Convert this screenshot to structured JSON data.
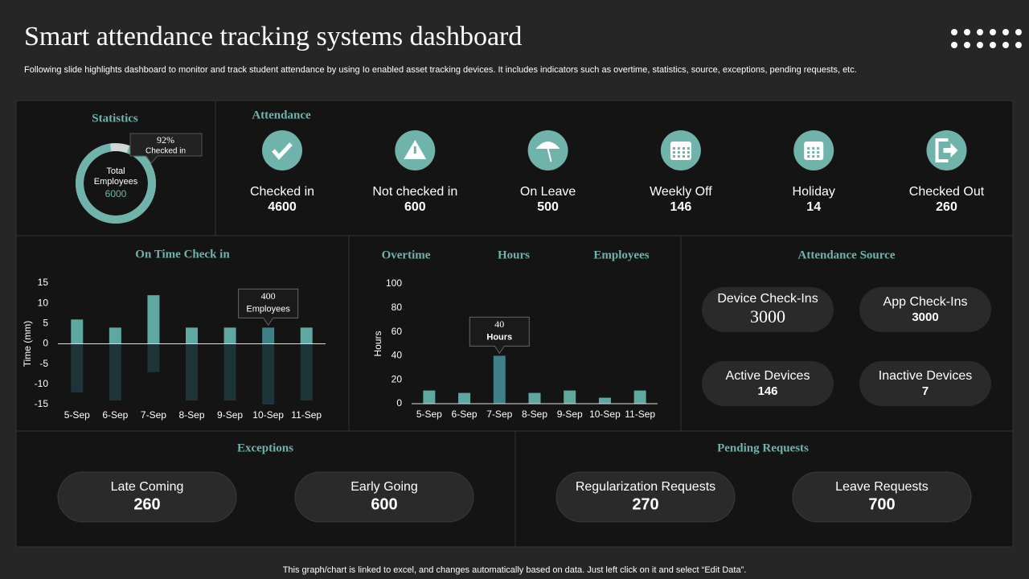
{
  "header": {
    "title": "Smart attendance tracking systems dashboard",
    "subtitle": "Following slide highlights dashboard to monitor and track student attendance by using Io enabled asset tracking devices. It includes indicators such as overtime, statistics, source, exceptions, pending requests, etc."
  },
  "statistics": {
    "title": "Statistics",
    "checked_in_percent": 92,
    "checked_in_percent_label": "92%",
    "callout": "Checked in",
    "center_label": "Total Employees",
    "total": 6000
  },
  "attendance": {
    "title": "Attendance",
    "items": [
      {
        "label": "Checked in",
        "value": 4600
      },
      {
        "label": "Not checked in",
        "value": 600
      },
      {
        "label": "On Leave",
        "value": 500
      },
      {
        "label": "Weekly Off",
        "value": 146
      },
      {
        "label": "Holiday",
        "value": 14
      },
      {
        "label": "Checked Out",
        "value": 260
      }
    ]
  },
  "on_time_chart": {
    "type": "bar",
    "title": "On Time Check in",
    "y_label": "Time (mm)",
    "categories": [
      "5-Sep",
      "6-Sep",
      "7-Sep",
      "8-Sep",
      "9-Sep",
      "10-Sep",
      "11-Sep"
    ],
    "series": [
      {
        "color": "#5fa8a0",
        "values": [
          6,
          4,
          12,
          4,
          4,
          4,
          4
        ]
      },
      {
        "color": "#1d3538",
        "values": [
          -12,
          -14,
          -7,
          -14,
          -14,
          -15,
          -14
        ]
      }
    ],
    "highlight": 5,
    "highlight_color": "#3f7f86",
    "ylim": [
      -15,
      15
    ],
    "yticks": [
      -15,
      -10,
      -5,
      0,
      5,
      10,
      15
    ],
    "callout": {
      "value": 400,
      "label": "Employees"
    }
  },
  "overtime_chart": {
    "type": "bar",
    "headers": [
      "Overtime",
      "Hours",
      "Employees"
    ],
    "y_label": "Hours",
    "categories": [
      "5-Sep",
      "6-Sep",
      "7-Sep",
      "8-Sep",
      "9-Sep",
      "10-Sep",
      "11-Sep"
    ],
    "values": [
      11,
      9,
      40,
      9,
      11,
      5,
      11
    ],
    "color": "#5fa8a0",
    "highlight": 2,
    "highlight_color": "#3f7f86",
    "ylim": [
      0,
      100
    ],
    "yticks": [
      0,
      20,
      40,
      60,
      80,
      100
    ],
    "callout": {
      "value": 40,
      "label": "Hours"
    }
  },
  "attendance_source": {
    "title": "Attendance Source",
    "items": [
      {
        "label": "Device Check-Ins",
        "value": 3000
      },
      {
        "label": "App Check-Ins",
        "value": 3000
      },
      {
        "label": "Active Devices",
        "value": 146
      },
      {
        "label": "Inactive Devices",
        "value": 7
      }
    ]
  },
  "exceptions": {
    "title": "Exceptions",
    "items": [
      {
        "label": "Late Coming",
        "value": 260
      },
      {
        "label": "Early Going",
        "value": 600
      }
    ]
  },
  "pending_requests": {
    "title": "Pending Requests",
    "items": [
      {
        "label": "Regularization Requests",
        "value": 270
      },
      {
        "label": "Leave Requests",
        "value": 700
      }
    ]
  },
  "footer": "This graph/chart is linked to excel,  and changes automatically based on data. Just left click on it and select “Edit Data”."
}
